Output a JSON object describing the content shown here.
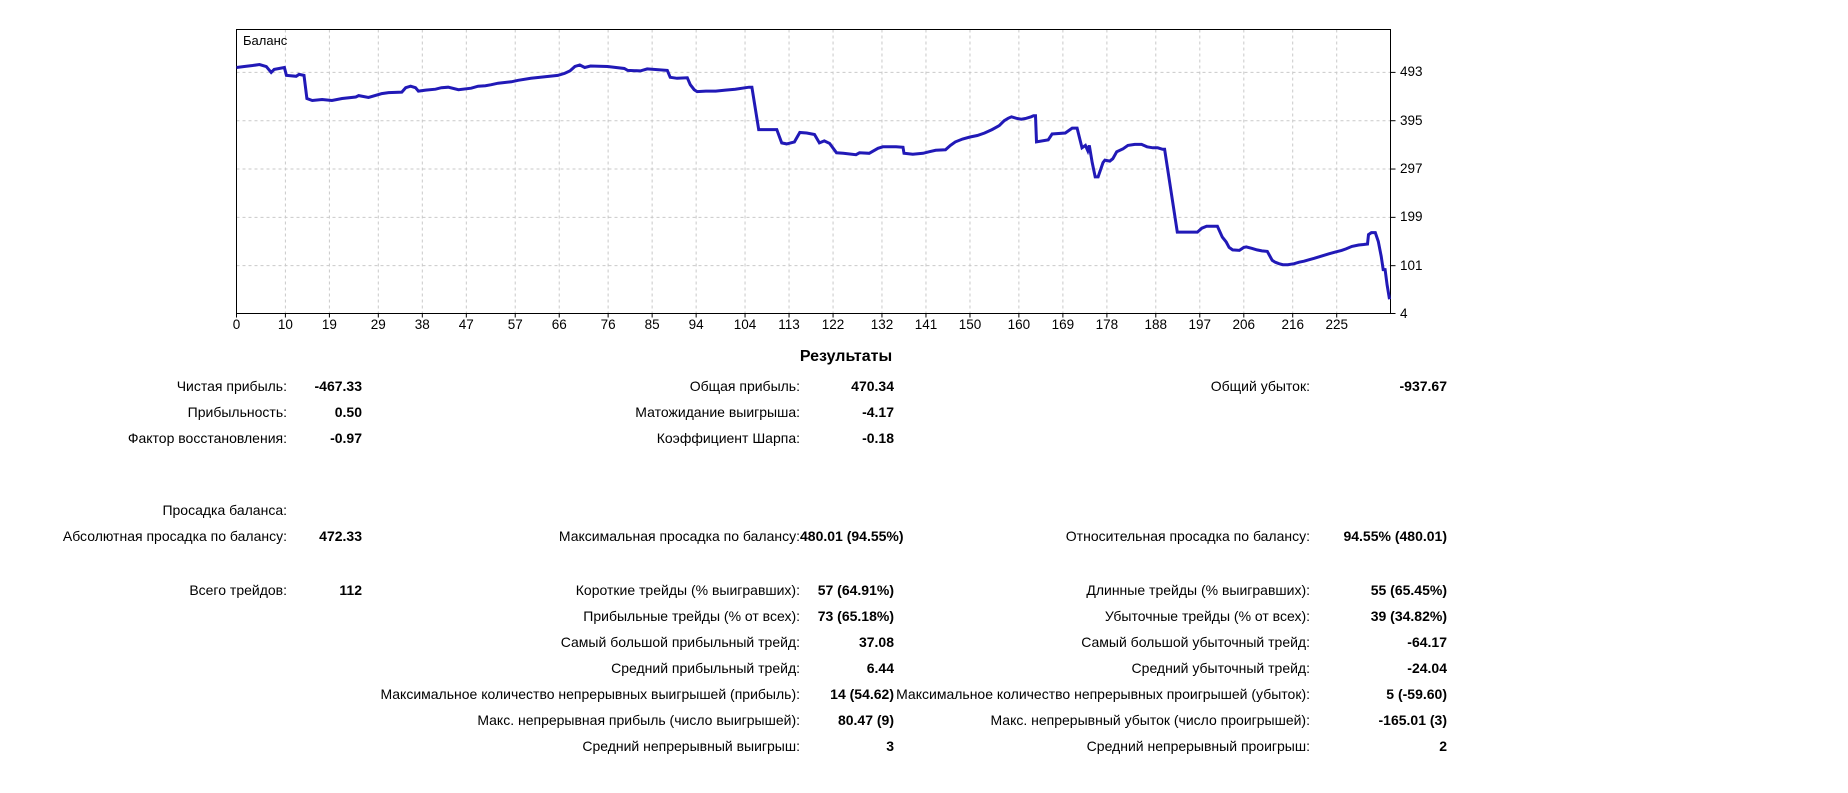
{
  "colors": {
    "line": "#2119b7",
    "grid": "#c9c9c9",
    "border": "#000000",
    "background": "#ffffff",
    "text": "#000000"
  },
  "chart_data": {
    "type": "line",
    "title": "Баланс",
    "xlabel": "",
    "ylabel": "",
    "grid": true,
    "legend_position": "none",
    "x_axis": {
      "ticks": [
        0,
        10,
        19,
        29,
        38,
        47,
        57,
        66,
        76,
        85,
        94,
        104,
        113,
        122,
        132,
        141,
        150,
        160,
        169,
        178,
        188,
        197,
        206,
        216,
        225
      ],
      "range": [
        0,
        236
      ]
    },
    "y_axis": {
      "ticks": [
        493,
        395,
        297,
        199,
        101,
        4
      ],
      "range": [
        4,
        580
      ]
    },
    "series": [
      {
        "name": "Баланс",
        "points": [
          [
            0,
            503
          ],
          [
            1.6,
            505
          ],
          [
            3.3,
            507
          ],
          [
            4.7,
            509
          ],
          [
            6.1,
            505
          ],
          [
            7.1,
            493
          ],
          [
            7.7,
            499
          ],
          [
            9.8,
            503
          ],
          [
            10.2,
            487
          ],
          [
            12.2,
            485
          ],
          [
            12.8,
            489
          ],
          [
            13.8,
            487
          ],
          [
            14.4,
            440
          ],
          [
            15.5,
            436
          ],
          [
            17.5,
            438
          ],
          [
            19.5,
            436
          ],
          [
            21.6,
            440
          ],
          [
            24.4,
            443
          ],
          [
            25,
            446
          ],
          [
            27,
            442
          ],
          [
            29.7,
            450
          ],
          [
            31.1,
            452
          ],
          [
            33.8,
            453
          ],
          [
            34.6,
            462
          ],
          [
            35.6,
            465
          ],
          [
            36.6,
            462
          ],
          [
            37.2,
            455
          ],
          [
            38.7,
            457
          ],
          [
            40.7,
            459
          ],
          [
            41.9,
            462
          ],
          [
            43.3,
            463
          ],
          [
            45.4,
            458
          ],
          [
            48,
            461
          ],
          [
            49.4,
            465
          ],
          [
            50.9,
            466
          ],
          [
            52.1,
            468
          ],
          [
            53.5,
            471
          ],
          [
            56.2,
            474
          ],
          [
            57.6,
            477
          ],
          [
            60.2,
            481
          ],
          [
            63.1,
            484
          ],
          [
            65.7,
            487
          ],
          [
            67.1,
            491
          ],
          [
            68.2,
            496
          ],
          [
            69.2,
            505
          ],
          [
            70.2,
            508
          ],
          [
            71.2,
            503
          ],
          [
            72.4,
            506
          ],
          [
            75.9,
            505
          ],
          [
            79.3,
            501
          ],
          [
            80,
            497
          ],
          [
            82.6,
            496
          ],
          [
            84,
            500
          ],
          [
            88.1,
            497
          ],
          [
            88.7,
            483
          ],
          [
            90.1,
            481
          ],
          [
            92.2,
            482
          ],
          [
            92.8,
            468
          ],
          [
            93.6,
            458
          ],
          [
            94.2,
            454
          ],
          [
            96,
            455
          ],
          [
            98,
            455
          ],
          [
            100,
            457
          ],
          [
            102,
            459
          ],
          [
            104.8,
            463
          ],
          [
            105.4,
            463
          ],
          [
            106.8,
            377
          ],
          [
            110.5,
            377
          ],
          [
            111.5,
            350
          ],
          [
            112.5,
            348
          ],
          [
            114.1,
            352
          ],
          [
            115.2,
            371
          ],
          [
            116.6,
            370
          ],
          [
            118.2,
            367
          ],
          [
            119.2,
            350
          ],
          [
            120.2,
            354
          ],
          [
            121.3,
            349
          ],
          [
            122.7,
            330
          ],
          [
            124.1,
            329
          ],
          [
            126.7,
            326
          ],
          [
            127.4,
            330
          ],
          [
            129.4,
            329
          ],
          [
            131.2,
            339
          ],
          [
            132.2,
            342
          ],
          [
            134.9,
            342
          ],
          [
            136.3,
            341
          ],
          [
            136.5,
            329
          ],
          [
            138.3,
            327
          ],
          [
            140.4,
            329
          ],
          [
            141.6,
            332
          ],
          [
            143,
            335
          ],
          [
            145,
            336
          ],
          [
            146,
            345
          ],
          [
            147,
            352
          ],
          [
            148.5,
            358
          ],
          [
            150,
            362
          ],
          [
            151.5,
            365
          ],
          [
            153,
            370
          ],
          [
            154.5,
            377
          ],
          [
            156,
            385
          ],
          [
            157,
            395
          ],
          [
            157.8,
            400
          ],
          [
            158.5,
            403
          ],
          [
            159.5,
            400
          ],
          [
            160.5,
            398
          ],
          [
            161.5,
            400
          ],
          [
            162.5,
            403
          ],
          [
            163,
            405
          ],
          [
            163.4,
            405
          ],
          [
            163.6,
            352
          ],
          [
            166,
            356
          ],
          [
            166.8,
            368
          ],
          [
            169.5,
            370
          ],
          [
            170.9,
            380
          ],
          [
            171.9,
            380
          ],
          [
            172.9,
            340
          ],
          [
            173.6,
            345
          ],
          [
            174.1,
            334
          ],
          [
            174.4,
            345
          ],
          [
            175,
            310
          ],
          [
            175.6,
            281
          ],
          [
            176.2,
            281
          ],
          [
            177.2,
            310
          ],
          [
            177.6,
            315
          ],
          [
            178.6,
            313
          ],
          [
            179.2,
            318
          ],
          [
            180,
            332
          ],
          [
            181.3,
            338
          ],
          [
            182.3,
            345
          ],
          [
            183.7,
            347
          ],
          [
            185.1,
            347
          ],
          [
            186.2,
            342
          ],
          [
            187.4,
            340
          ],
          [
            188.4,
            340
          ],
          [
            189.4,
            337
          ],
          [
            189.8,
            337
          ],
          [
            192.4,
            169
          ],
          [
            196.5,
            169
          ],
          [
            197.4,
            177
          ],
          [
            198.4,
            181
          ],
          [
            200.6,
            181
          ],
          [
            201.6,
            159
          ],
          [
            202.4,
            149
          ],
          [
            203,
            138
          ],
          [
            203.7,
            133
          ],
          [
            205.1,
            132
          ],
          [
            206,
            138
          ],
          [
            206.5,
            139
          ],
          [
            207.7,
            136
          ],
          [
            208.7,
            133
          ],
          [
            209.7,
            131
          ],
          [
            210.8,
            130
          ],
          [
            211.8,
            112
          ],
          [
            212.4,
            108
          ],
          [
            213.2,
            105
          ],
          [
            214,
            103
          ],
          [
            215,
            103
          ],
          [
            216.3,
            105
          ],
          [
            217.3,
            108
          ],
          [
            218.3,
            110
          ],
          [
            219.3,
            113
          ],
          [
            220.4,
            116
          ],
          [
            221.4,
            119
          ],
          [
            222.4,
            122
          ],
          [
            223.4,
            125
          ],
          [
            224.8,
            129
          ],
          [
            226,
            132
          ],
          [
            226.9,
            135
          ],
          [
            228.1,
            140
          ],
          [
            229.5,
            143
          ],
          [
            230.5,
            144
          ],
          [
            231.3,
            145
          ],
          [
            231.5,
            164
          ],
          [
            232.1,
            168
          ],
          [
            232.9,
            168
          ],
          [
            233.5,
            150
          ],
          [
            234.1,
            120
          ],
          [
            234.5,
            93
          ],
          [
            234.9,
            93
          ],
          [
            235.3,
            62
          ],
          [
            235.8,
            33
          ]
        ]
      }
    ]
  },
  "results": {
    "title": "Результаты",
    "rows": [
      {
        "c1": {
          "label": "Чистая прибыль:",
          "value": "-467.33"
        },
        "c2": {
          "label": "Общая прибыль:",
          "value": "470.34"
        },
        "c3": {
          "label": "Общий убыток:",
          "value": "-937.67"
        }
      },
      {
        "c1": {
          "label": "Прибыльность:",
          "value": "0.50"
        },
        "c2": {
          "label": "Матожидание выигрыша:",
          "value": "-4.17"
        }
      },
      {
        "c1": {
          "label": "Фактор восстановления:",
          "value": "-0.97"
        },
        "c2": {
          "label": "Коэффициент Шарпа:",
          "value": "-0.18"
        }
      },
      {
        "c1": {
          "label": "Просадка баланса:",
          "value": ""
        }
      },
      {
        "c1": {
          "label": "Абсолютная просадка по балансу:",
          "value": "472.33"
        },
        "c2": {
          "label": "Максимальная просадка по балансу:",
          "value": "480.01 (94.55%)"
        },
        "c3": {
          "label": "Относительная просадка по балансу:",
          "value": "94.55% (480.01)"
        }
      },
      {
        "c1": {
          "label": "Всего трейдов:",
          "value": "112"
        },
        "c2": {
          "label": "Короткие трейды (% выигравших):",
          "value": "57 (64.91%)"
        },
        "c3": {
          "label": "Длинные трейды (% выигравших):",
          "value": "55 (65.45%)"
        }
      },
      {
        "c2": {
          "label": "Прибыльные трейды (% от всех):",
          "value": "73 (65.18%)"
        },
        "c3": {
          "label": "Убыточные трейды (% от всех):",
          "value": "39 (34.82%)"
        }
      },
      {
        "c2": {
          "label": "Самый большой прибыльный трейд:",
          "value": "37.08"
        },
        "c3": {
          "label": "Самый большой убыточный трейд:",
          "value": "-64.17"
        }
      },
      {
        "c2": {
          "label": "Средний прибыльный трейд:",
          "value": "6.44"
        },
        "c3": {
          "label": "Средний убыточный трейд:",
          "value": "-24.04"
        }
      },
      {
        "c2": {
          "label": "Максимальное количество непрерывных выигрышей (прибыль):",
          "value": "14 (54.62)"
        },
        "c3": {
          "label": "Максимальное количество непрерывных проигрышей (убыток):",
          "value": "5 (-59.60)"
        }
      },
      {
        "c2": {
          "label": "Макс. непрерывная прибыль (число выигрышей):",
          "value": "80.47 (9)"
        },
        "c3": {
          "label": "Макс. непрерывный убыток (число проигрышей):",
          "value": "-165.01 (3)"
        }
      },
      {
        "c2": {
          "label": "Средний непрерывный выигрыш:",
          "value": "3"
        },
        "c3": {
          "label": "Средний непрерывный проигрыш:",
          "value": "2"
        }
      }
    ]
  }
}
